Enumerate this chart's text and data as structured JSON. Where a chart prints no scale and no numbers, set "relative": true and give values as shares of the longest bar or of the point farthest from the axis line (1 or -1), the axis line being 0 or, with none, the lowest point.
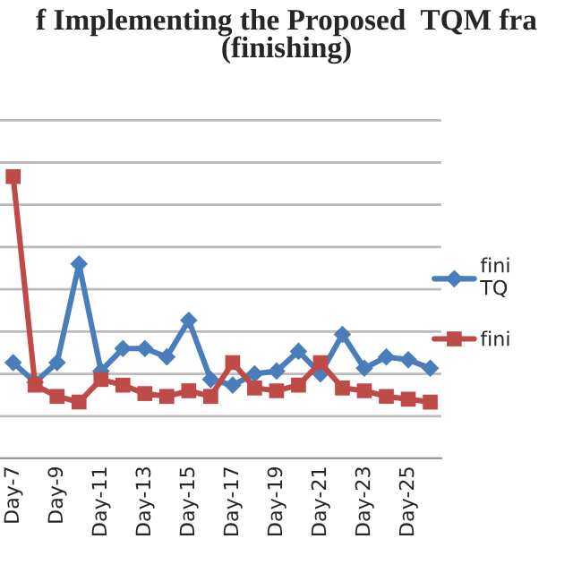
{
  "chart_data": {
    "type": "line",
    "title": "f Implementing the Proposed  TQM fra\n(finishing)",
    "relative": true,
    "categories": [
      "Day-7",
      null,
      "Day-9",
      null,
      "Day-11",
      null,
      "Day-13",
      null,
      "Day-15",
      null,
      "Day-17",
      null,
      "Day-19",
      null,
      "Day-21",
      null,
      "Day-23",
      null,
      "Day-25",
      null
    ],
    "series": [
      {
        "name": "fini\nTQ",
        "color": "#4a7ebb",
        "marker": "diamond",
        "values": [
          0.34,
          0.27,
          0.34,
          0.69,
          0.31,
          0.39,
          0.39,
          0.36,
          0.49,
          0.28,
          0.26,
          0.3,
          0.31,
          0.38,
          0.3,
          0.44,
          0.32,
          0.36,
          0.35,
          0.32
        ]
      },
      {
        "name": "fini",
        "color": "#be4b48",
        "marker": "square",
        "values": [
          1.0,
          0.26,
          0.22,
          0.2,
          0.28,
          0.26,
          0.23,
          0.22,
          0.24,
          0.22,
          0.34,
          0.25,
          0.24,
          0.26,
          0.34,
          0.25,
          0.24,
          0.22,
          0.21,
          0.2
        ]
      }
    ],
    "grid": "y",
    "legend": "right"
  }
}
